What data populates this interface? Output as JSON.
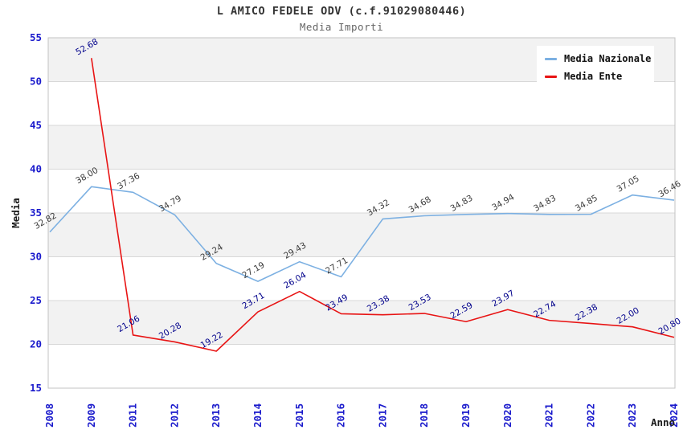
{
  "chart_data": {
    "type": "line",
    "title": "L AMICO FEDELE ODV (c.f.91029080446)",
    "subtitle": "Media Importi",
    "xlabel": "Anno",
    "ylabel": "Media",
    "ylim": [
      15,
      55
    ],
    "ytick_step": 5,
    "grid": "horizontal gridlines with alternating gray bands",
    "legend_position": "top-right",
    "point_label_format": "2 decimals, rotated -30deg",
    "x_tick_rotation": -90,
    "categories": [
      "2008",
      "2009",
      "2011",
      "2012",
      "2013",
      "2014",
      "2015",
      "2016",
      "2017",
      "2018",
      "2019",
      "2020",
      "2021",
      "2022",
      "2023",
      "2024"
    ],
    "series": [
      {
        "name": "Media Nazionale",
        "color": "#7cb0e2",
        "label_color": "#3c3c3c",
        "values": [
          32.82,
          38.0,
          37.36,
          34.79,
          29.24,
          27.19,
          29.43,
          27.71,
          34.32,
          34.68,
          34.83,
          34.94,
          34.83,
          34.85,
          37.05,
          36.46
        ]
      },
      {
        "name": "Media Ente",
        "color": "#e81414",
        "label_color": "#00008b",
        "values": [
          null,
          52.68,
          21.06,
          20.28,
          19.22,
          23.71,
          26.04,
          23.49,
          23.38,
          23.53,
          22.59,
          23.97,
          22.74,
          22.38,
          22.0,
          20.8
        ]
      }
    ],
    "colors": {
      "axis_text": "#1a1acc",
      "grid": "#d8d8d8",
      "band": "#f2f2f2",
      "plot_border": "#c3c3c3",
      "title": "#333333",
      "subtitle": "#666666",
      "background": "#ffffff",
      "legend_background": "#ffffff"
    }
  }
}
